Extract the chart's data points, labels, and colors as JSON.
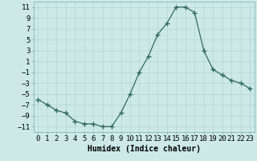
{
  "x": [
    0,
    1,
    2,
    3,
    4,
    5,
    6,
    7,
    8,
    9,
    10,
    11,
    12,
    13,
    14,
    15,
    16,
    17,
    18,
    19,
    20,
    21,
    22,
    23
  ],
  "y": [
    -6,
    -7,
    -8,
    -8.5,
    -10,
    -10.5,
    -10.5,
    -11,
    -11,
    -8.5,
    -5,
    -1,
    2,
    6,
    8,
    11,
    11,
    10,
    3,
    -0.5,
    -1.5,
    -2.5,
    -3,
    -4
  ],
  "line_color": "#2e6b5e",
  "marker": "+",
  "marker_size": 4,
  "bg_color": "#cce9e7",
  "grid_color": "#b8d8d5",
  "xlabel": "Humidex (Indice chaleur)",
  "xlabel_fontsize": 7,
  "xlim": [
    -0.5,
    23.5
  ],
  "ylim": [
    -12,
    12
  ],
  "yticks": [
    -11,
    -9,
    -7,
    -5,
    -3,
    -1,
    1,
    3,
    5,
    7,
    9,
    11
  ],
  "xticks": [
    0,
    1,
    2,
    3,
    4,
    5,
    6,
    7,
    8,
    9,
    10,
    11,
    12,
    13,
    14,
    15,
    16,
    17,
    18,
    19,
    20,
    21,
    22,
    23
  ],
  "tick_fontsize": 6.5,
  "spine_color": "#7aada8",
  "linewidth": 0.9
}
